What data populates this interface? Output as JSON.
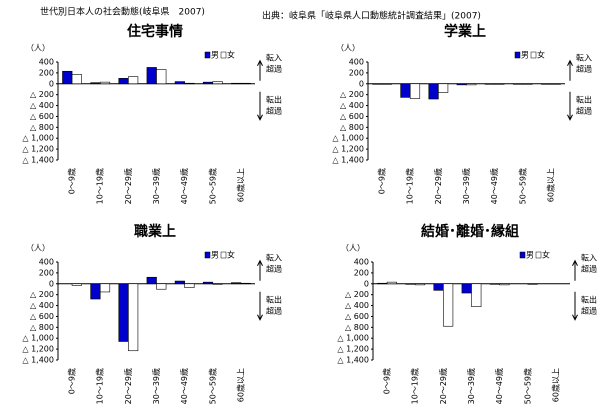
{
  "title": "世代別日本人の社会動態(岐阜県　2007)",
  "source": "出典：岐阜県「岐阜県人口動態統計調査結果」(2007)",
  "chart_data": [
    {
      "type": "bar",
      "title": "住宅事情",
      "y_label": "（人）",
      "categories": [
        "0～9歳",
        "10～19歳",
        "20～29歳",
        "30～39歳",
        "40～49歳",
        "50～59歳",
        "60歳以上"
      ],
      "series": [
        {
          "name": "男",
          "color": "#0000cc",
          "values": [
            230,
            20,
            100,
            300,
            40,
            30,
            10
          ]
        },
        {
          "name": "女",
          "color": "#ffffff",
          "values": [
            170,
            30,
            130,
            260,
            10,
            40,
            10
          ]
        }
      ],
      "ylim": [
        -1400,
        400
      ],
      "yticks": [
        400,
        200,
        0,
        {
          "value": -200,
          "label": "△ 200"
        },
        {
          "value": -400,
          "label": "△ 400"
        },
        {
          "value": -600,
          "label": "△ 600"
        },
        {
          "value": -800,
          "label": "△ 800"
        },
        {
          "value": -1000,
          "label": "△ 1,000"
        },
        {
          "value": -1200,
          "label": "△ 1,200"
        },
        {
          "value": -1400,
          "label": "△ 1,400"
        }
      ],
      "annotations": [
        [
          "転入",
          "超過"
        ],
        [
          "転出",
          "超過"
        ]
      ]
    },
    {
      "type": "bar",
      "title": "学業上",
      "y_label": "（人）",
      "categories": [
        "0～9歳",
        "10～19歳",
        "20～29歳",
        "30～39歳",
        "40～49歳",
        "50～59歳",
        "60歳以上"
      ],
      "series": [
        {
          "name": "男",
          "color": "#0000cc",
          "values": [
            -10,
            -250,
            -280,
            -20,
            -10,
            -10,
            -10
          ]
        },
        {
          "name": "女",
          "color": "#ffffff",
          "values": [
            -10,
            -270,
            -160,
            -20,
            -10,
            -10,
            -10
          ]
        }
      ],
      "ylim": [
        -1400,
        400
      ],
      "yticks": [
        400,
        200,
        0,
        {
          "value": -200,
          "label": "△ 200"
        },
        {
          "value": -400,
          "label": "△ 400"
        },
        {
          "value": -600,
          "label": "△ 600"
        },
        {
          "value": -800,
          "label": "△ 800"
        },
        {
          "value": -1000,
          "label": "△ 1,000"
        },
        {
          "value": -1200,
          "label": "△ 1,200"
        },
        {
          "value": -1400,
          "label": "△ 1,400"
        }
      ],
      "annotations": [
        [
          "転入",
          "超過"
        ],
        [
          "転出",
          "超過"
        ]
      ]
    },
    {
      "type": "bar",
      "title": "職業上",
      "y_label": "（人）",
      "categories": [
        "0～9歳",
        "10～19歳",
        "20～29歳",
        "30～39歳",
        "40～49歳",
        "50～59歳",
        "60歳以上"
      ],
      "series": [
        {
          "name": "男",
          "color": "#0000cc",
          "values": [
            0,
            -280,
            -1060,
            120,
            50,
            30,
            20
          ]
        },
        {
          "name": "女",
          "color": "#ffffff",
          "values": [
            -30,
            -150,
            -1230,
            -100,
            -70,
            -10,
            10
          ]
        }
      ],
      "ylim": [
        -1400,
        400
      ],
      "yticks": [
        400,
        200,
        0,
        {
          "value": -200,
          "label": "△ 200"
        },
        {
          "value": -400,
          "label": "△ 400"
        },
        {
          "value": -600,
          "label": "△ 600"
        },
        {
          "value": -800,
          "label": "△ 800"
        },
        {
          "value": -1000,
          "label": "△ 1,000"
        },
        {
          "value": -1200,
          "label": "△ 1,200"
        },
        {
          "value": -1400,
          "label": "△ 1,400"
        }
      ],
      "annotations": [
        [
          "転入",
          "超過"
        ],
        [
          "転出",
          "超過"
        ]
      ]
    },
    {
      "type": "bar",
      "title": "結婚･離婚･縁組",
      "y_label": "（人）",
      "categories": [
        "0～9歳",
        "10～19歳",
        "20～29歳",
        "30～39歳",
        "40～49歳",
        "50～59歳",
        "60歳以上"
      ],
      "series": [
        {
          "name": "男",
          "color": "#0000cc",
          "values": [
            10,
            -10,
            -120,
            -170,
            -10,
            0,
            0
          ]
        },
        {
          "name": "女",
          "color": "#ffffff",
          "values": [
            30,
            -20,
            -780,
            -420,
            -20,
            -10,
            0
          ]
        }
      ],
      "ylim": [
        -1400,
        400
      ],
      "yticks": [
        400,
        200,
        0,
        {
          "value": -200,
          "label": "△ 200"
        },
        {
          "value": -400,
          "label": "△ 400"
        },
        {
          "value": -600,
          "label": "△ 600"
        },
        {
          "value": -800,
          "label": "△ 800"
        },
        {
          "value": -1000,
          "label": "△ 1,000"
        },
        {
          "value": -1200,
          "label": "△ 1,200"
        },
        {
          "value": -1400,
          "label": "△ 1,400"
        }
      ],
      "annotations": [
        [
          "転入",
          "超過"
        ],
        [
          "転出",
          "超過"
        ]
      ]
    }
  ]
}
